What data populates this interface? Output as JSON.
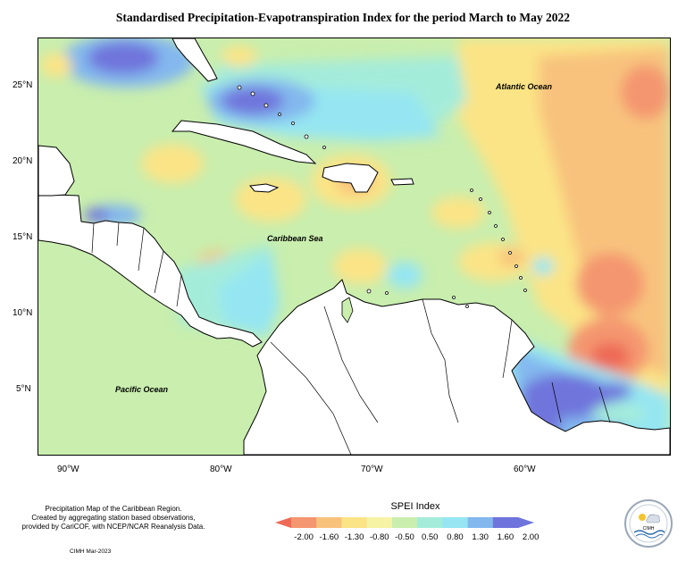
{
  "title": "Standardised Precipitation-Evapotranspiration Index for the period March to May 2022",
  "map": {
    "labels": {
      "atlantic": "Atlantic Ocean",
      "caribbean": "Caribbean Sea",
      "pacific": "Pacific Ocean"
    },
    "lat_ticks": [
      "25°N",
      "20°N",
      "15°N",
      "10°N",
      "5°N"
    ],
    "lon_ticks": [
      "90°W",
      "80°W",
      "70°W",
      "60°W"
    ]
  },
  "footer": {
    "line1": "Precipitation Map of the Caribbean Region.",
    "line2": "Created by aggregating station based observations,",
    "line3": "provided by CariCOF, with NCEP/NCAR Reanalysis Data.",
    "credit": "CIMH Mar-2023"
  },
  "legend": {
    "title": "SPEI Index",
    "labels": [
      "-2.00",
      "-1.60",
      "-1.30",
      "-0.80",
      "-0.50",
      "0.50",
      "0.80",
      "1.30",
      "1.60",
      "2.00"
    ],
    "colors": [
      "#ee6a57",
      "#f4966f",
      "#f8c27d",
      "#fbe486",
      "#f7f3a4",
      "#c9eeae",
      "#a4ecda",
      "#95e6f2",
      "#83b8ee",
      "#6f74dc",
      "#6f74dc"
    ]
  },
  "logo": {
    "text": "CIMH"
  }
}
